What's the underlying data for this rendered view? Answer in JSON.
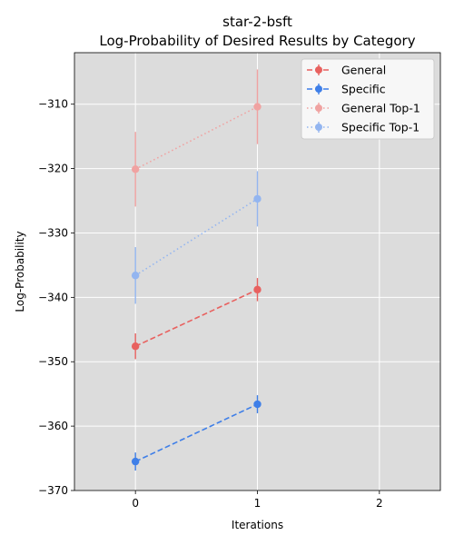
{
  "chart_data": {
    "type": "line",
    "title": "star-2-bsft",
    "subtitle": "Log-Probability of Desired Results by Category",
    "xlabel": "Iterations",
    "ylabel": "Log-Probability",
    "xlim": [
      -0.5,
      2.5
    ],
    "ylim": [
      -370,
      -302
    ],
    "xticks": [
      0,
      1,
      2
    ],
    "yticks": [
      -370,
      -360,
      -350,
      -340,
      -330,
      -320,
      -310
    ],
    "grid": true,
    "legend_position": "top-right",
    "series": [
      {
        "name": "General",
        "x": [
          0,
          1
        ],
        "y": [
          -347.6,
          -338.8
        ],
        "err": [
          2.0,
          1.8
        ],
        "color": "#e8615f",
        "style": "dashed",
        "alpha": 1.0
      },
      {
        "name": "Specific",
        "x": [
          0,
          1
        ],
        "y": [
          -365.5,
          -356.6
        ],
        "err": [
          1.4,
          1.4
        ],
        "color": "#3f7fe8",
        "style": "dashed",
        "alpha": 1.0
      },
      {
        "name": "General Top-1",
        "x": [
          0,
          1
        ],
        "y": [
          -320.1,
          -310.4
        ],
        "err": [
          5.8,
          5.8
        ],
        "color": "#f0a2a1",
        "style": "dotted",
        "alpha": 1.0
      },
      {
        "name": "Specific Top-1",
        "x": [
          0,
          1
        ],
        "y": [
          -336.6,
          -324.7
        ],
        "err": [
          4.4,
          4.3
        ],
        "color": "#93b5f0",
        "style": "dotted",
        "alpha": 1.0
      }
    ]
  }
}
